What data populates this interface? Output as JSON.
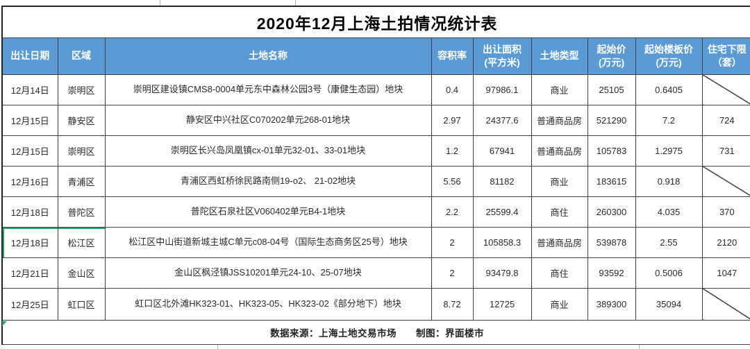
{
  "title": "2020年12月上海土拍情况统计表",
  "footer": {
    "text": "数据来源：上海土地交易市场　　制图：界面楼市"
  },
  "colors": {
    "header_bg": "#5B9BD5",
    "header_text": "#FFFFFF",
    "border": "#404040",
    "accent_green": "#21A366"
  },
  "table": {
    "highlight_row_index": 5,
    "columns": [
      {
        "key": "date",
        "line1": "出让日期",
        "line2": ""
      },
      {
        "key": "district",
        "line1": "区域",
        "line2": ""
      },
      {
        "key": "name",
        "line1": "土地名称",
        "line2": ""
      },
      {
        "key": "far",
        "line1": "容积率",
        "line2": ""
      },
      {
        "key": "area",
        "line1": "出让面积",
        "line2": "(平方米)"
      },
      {
        "key": "type",
        "line1": "土地类型",
        "line2": ""
      },
      {
        "key": "start_price",
        "line1": "起始价",
        "line2": "(万元)"
      },
      {
        "key": "start_floor_price",
        "line1": "起始楼板价",
        "line2": "(万元)"
      },
      {
        "key": "housing_min",
        "line1": "住宅下限",
        "line2": "（套）"
      }
    ],
    "rows": [
      {
        "date": "12月14日",
        "district": "崇明区",
        "name": "崇明区建设镇CMS8-0004单元东中森林公园3号（康健生态园）地块",
        "far": "0.4",
        "area": "97986.1",
        "type": "商业",
        "start_price": "25105",
        "start_floor_price": "0.6405",
        "housing_min": ""
      },
      {
        "date": "12月15日",
        "district": "静安区",
        "name": "静安区中兴社区C070202单元268-01地块",
        "far": "2.97",
        "area": "24377.6",
        "type": "普通商品房",
        "start_price": "521290",
        "start_floor_price": "7.2",
        "housing_min": "724"
      },
      {
        "date": "12月15日",
        "district": "崇明区",
        "name": "崇明区长兴岛凤凰镇cx-01单元32-01、33-01地块",
        "far": "1.2",
        "area": "67941",
        "type": "普通商品房",
        "start_price": "105783",
        "start_floor_price": "1.2975",
        "housing_min": "731"
      },
      {
        "date": "12月16日",
        "district": "青浦区",
        "name": "青浦区西虹桥徐民路南侧19-o2、 21-02地块",
        "far": "5.56",
        "area": "81182",
        "type": "商业",
        "start_price": "183615",
        "start_floor_price": "0.918",
        "housing_min": ""
      },
      {
        "date": "12月18日",
        "district": "普陀区",
        "name": "普陀区石泉社区V060402单元B4-1地块",
        "far": "2.2",
        "area": "25599.4",
        "type": "商住",
        "start_price": "260300",
        "start_floor_price": "4.035",
        "housing_min": "370"
      },
      {
        "date": "12月18日",
        "district": "松江区",
        "name": "松江区中山街道新城主城C单元c08-04号（国际生态商务区25号）地块",
        "far": "2",
        "area": "105858.3",
        "type": "普通商品房",
        "start_price": "539878",
        "start_floor_price": "2.55",
        "housing_min": "2120"
      },
      {
        "date": "12月21日",
        "district": "金山区",
        "name": "金山区枫泾镇JSS10201单元24-10、25-07地块",
        "far": "2",
        "area": "93479.8",
        "type": "商住",
        "start_price": "93592",
        "start_floor_price": "0.5006",
        "housing_min": "1047"
      },
      {
        "date": "12月25日",
        "district": "虹口区",
        "name": "虹口区北外滩HK323-01、HK323-05、HK323-02《部分地下）地块",
        "far": "8.72",
        "area": "12725",
        "type": "商业",
        "start_price": "389300",
        "start_floor_price": "35094",
        "housing_min": ""
      }
    ]
  }
}
